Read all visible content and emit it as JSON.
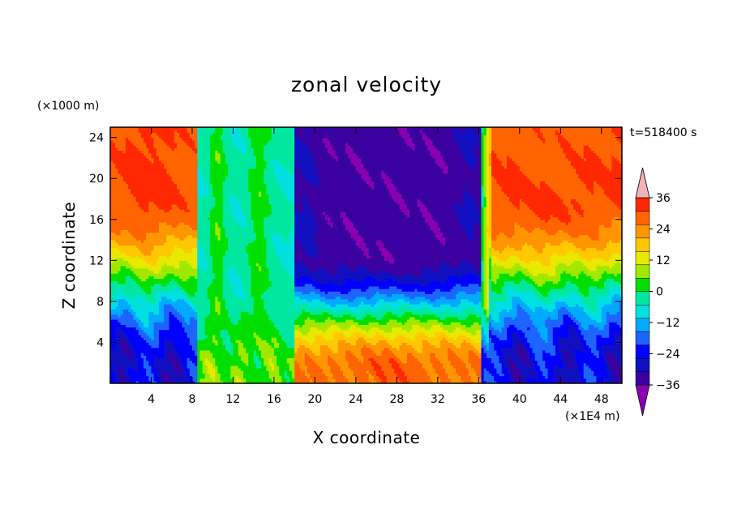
{
  "chart_data": {
    "type": "heatmap",
    "title": "zonal velocity",
    "xlabel": "X coordinate",
    "ylabel": "Z coordinate",
    "x_unit": "(×1E4 m)",
    "y_unit": "(×1000 m)",
    "time_label": "t=518400 s",
    "xlim": [
      0,
      50
    ],
    "ylim": [
      0,
      25
    ],
    "x_ticks": [
      4,
      8,
      12,
      16,
      20,
      24,
      28,
      32,
      36,
      40,
      44,
      48
    ],
    "y_ticks": [
      4,
      8,
      12,
      16,
      20,
      24
    ],
    "colorbar": {
      "ticks": [
        36,
        24,
        12,
        0,
        -12,
        -24,
        -36
      ],
      "levels": [
        -42,
        -36,
        -30,
        -24,
        -18,
        -12,
        -6,
        0,
        6,
        12,
        18,
        24,
        30,
        36,
        42
      ],
      "colors": [
        "#8a00b0",
        "#3a00a0",
        "#1010c0",
        "#0000ff",
        "#1e64ff",
        "#00aaff",
        "#00e0e0",
        "#00e8a0",
        "#00e000",
        "#a0e800",
        "#e8e800",
        "#ffc800",
        "#ff9600",
        "#ff6400",
        "#ff2800",
        "#f0b4b4"
      ],
      "extend": "both"
    },
    "regions": [
      {
        "x_range": [
          0,
          8
        ],
        "description_value": 36
      },
      {
        "x_range": [
          8,
          18
        ],
        "description_value": -6
      },
      {
        "x_range": [
          18,
          36
        ],
        "description_value": -36
      },
      {
        "x_range": [
          36,
          50
        ],
        "description_value": 30
      }
    ]
  }
}
